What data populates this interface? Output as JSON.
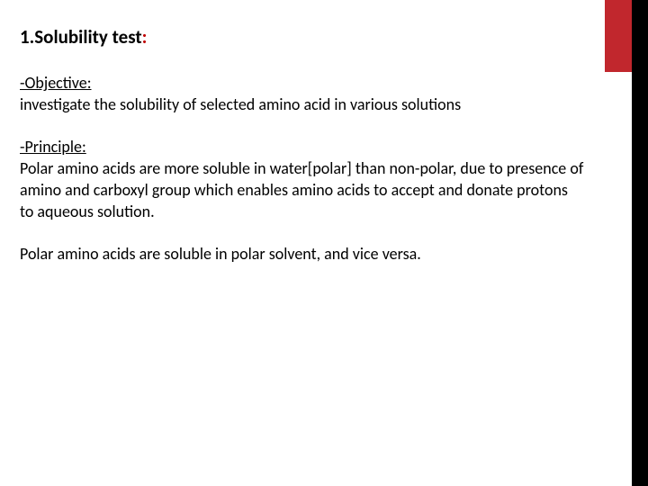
{
  "colors": {
    "accent_red": "#c1272d",
    "title_colon": "#c00000",
    "black": "#000000",
    "background": "#ffffff"
  },
  "title": {
    "text": "1.Solubility test",
    "colon": ":"
  },
  "objective": {
    "label": "-Objective:",
    "text": "investigate the solubility of selected amino acid in various solutions"
  },
  "principle": {
    "label": "-Principle:",
    "text": "Polar amino acids are more soluble in water[polar] than non-polar, due to presence of amino and carboxyl group which enables amino acids to accept and donate protons to aqueous solution."
  },
  "closing": {
    "text": "Polar amino acids are soluble in polar solvent, and vice versa."
  }
}
